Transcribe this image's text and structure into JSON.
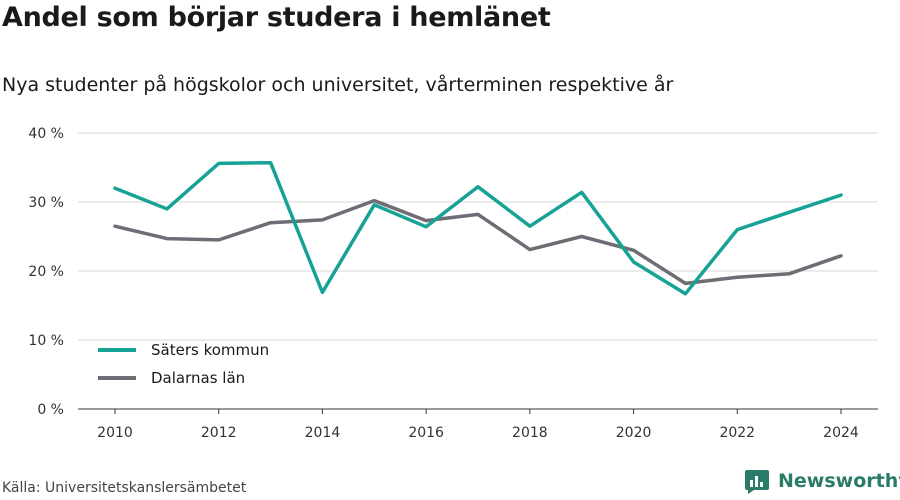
{
  "title": "Andel som börjar studera i hemlänet",
  "subtitle": "Nya studenter på högskolor och universitet, vårterminen respektive år",
  "source": "Källa: Universitetskanslersämbetet",
  "brand": {
    "name": "Newsworthy",
    "icon": "bar-chart-logo-icon",
    "color": "#2a7c69"
  },
  "chart_data": {
    "type": "line",
    "x": [
      2010,
      2011,
      2012,
      2013,
      2014,
      2015,
      2016,
      2017,
      2018,
      2019,
      2020,
      2021,
      2022,
      2023,
      2024
    ],
    "series": [
      {
        "name": "Säters kommun",
        "color": "#16a396",
        "values": [
          32.0,
          29.0,
          35.6,
          35.7,
          16.9,
          29.6,
          26.4,
          32.2,
          26.5,
          31.4,
          21.3,
          16.7,
          26.0,
          28.5,
          31.0
        ]
      },
      {
        "name": "Dalarnas län",
        "color": "#6e6d75",
        "values": [
          26.5,
          24.7,
          24.5,
          27.0,
          27.4,
          30.2,
          27.3,
          28.2,
          23.1,
          25.0,
          23.0,
          18.2,
          19.1,
          19.6,
          22.2
        ]
      }
    ],
    "xlim": [
      2010,
      2024
    ],
    "ylim": [
      0,
      40
    ],
    "x_ticks": [
      "2010",
      "2012",
      "2014",
      "2016",
      "2018",
      "2020",
      "2022",
      "2024"
    ],
    "y_ticks": [
      "0 %",
      "10 %",
      "20 %",
      "30 %",
      "40 %"
    ],
    "grid": true,
    "legend_position": "bottom-left"
  }
}
